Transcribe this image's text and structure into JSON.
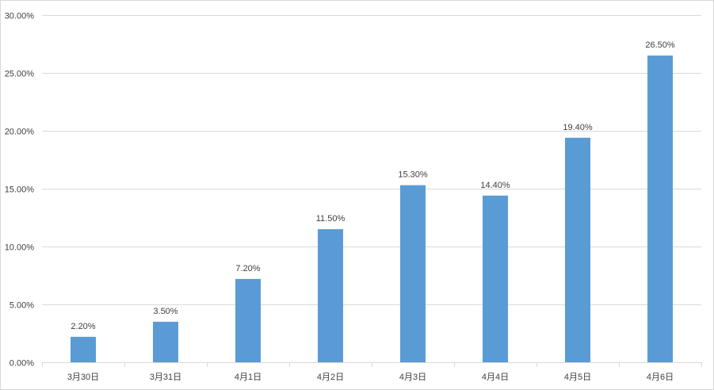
{
  "chart_data": {
    "type": "bar",
    "categories": [
      "3月30日",
      "3月31日",
      "4月1日",
      "4月2日",
      "4月3日",
      "4月4日",
      "4月5日",
      "4月6日"
    ],
    "values": [
      2.2,
      3.5,
      7.2,
      11.5,
      15.3,
      14.4,
      19.4,
      26.5
    ],
    "data_labels": [
      "2.20%",
      "3.50%",
      "7.20%",
      "11.50%",
      "15.30%",
      "14.40%",
      "19.40%",
      "26.50%"
    ],
    "y_ticks": [
      0,
      5,
      10,
      15,
      20,
      25,
      30
    ],
    "y_tick_labels": [
      "0.00%",
      "5.00%",
      "10.00%",
      "15.00%",
      "20.00%",
      "25.00%",
      "30.00%"
    ],
    "ylim": [
      0,
      30
    ],
    "grid": true,
    "legend": "none",
    "bar_color": "#5b9bd5"
  }
}
